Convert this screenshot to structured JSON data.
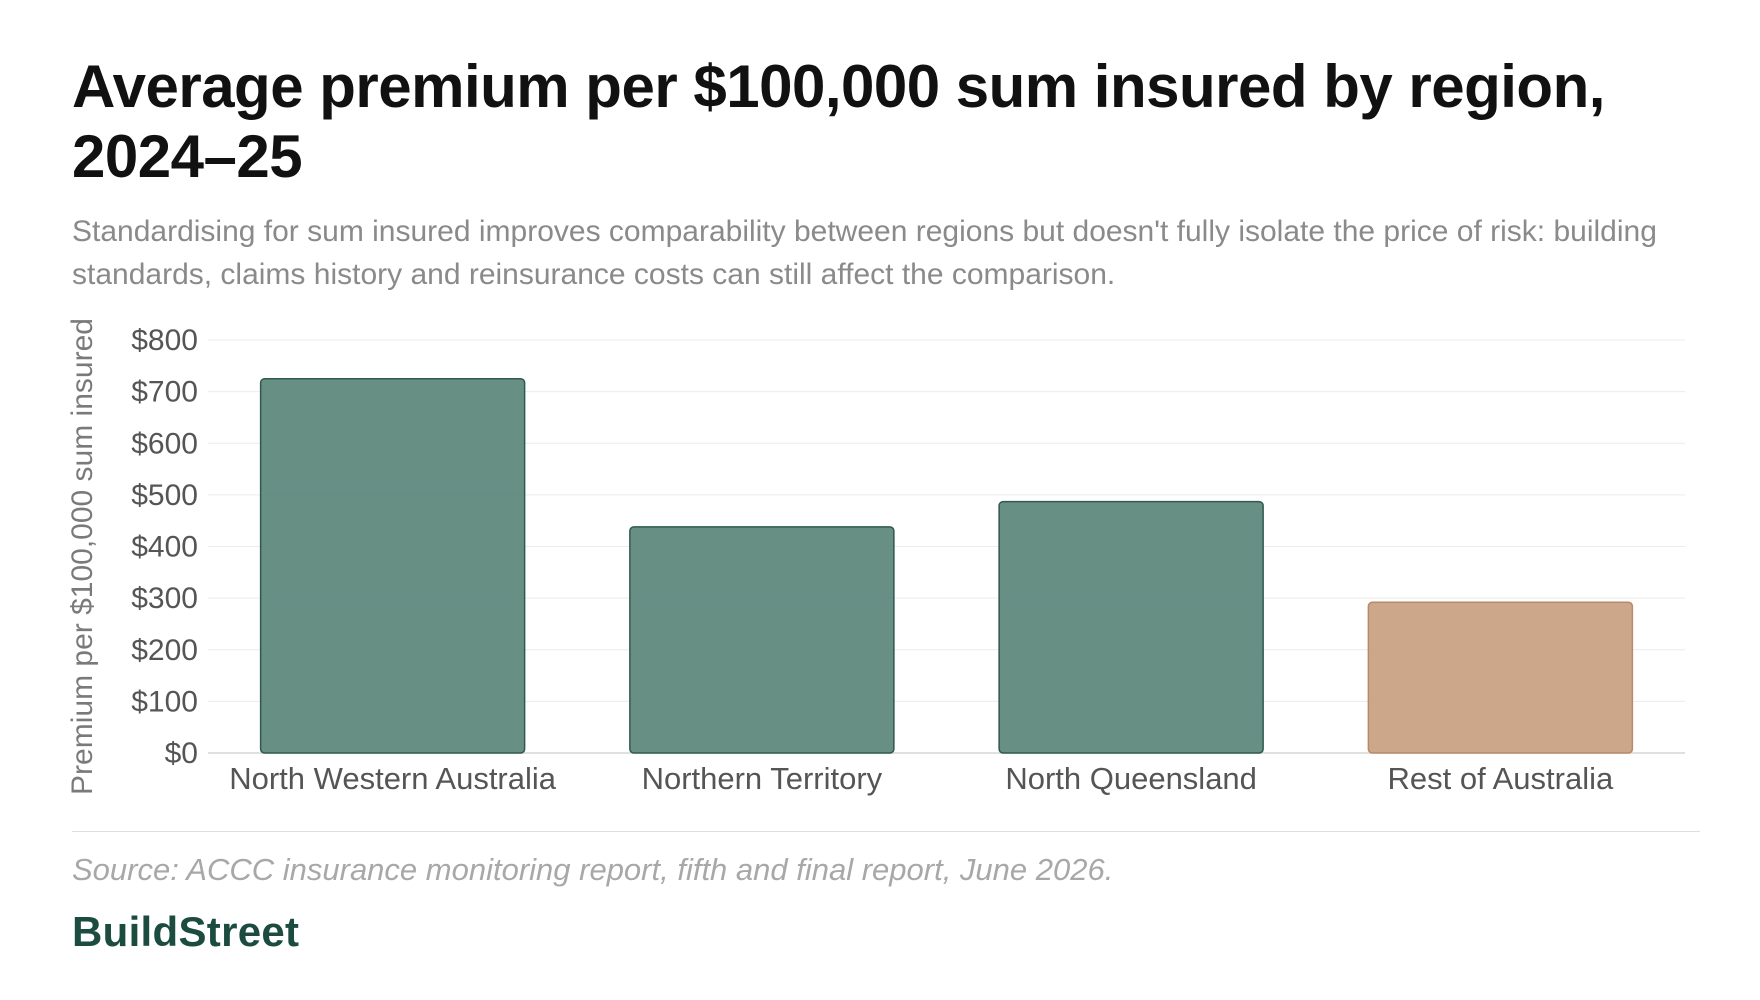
{
  "header": {
    "title": "Average premium per $100,000 sum insured by region, 2024–25",
    "subtitle": "Standardising for sum insured improves comparability between regions but doesn't fully isolate the price of risk: building standards, claims history and reinsurance costs can still affect the comparison."
  },
  "chart_data": {
    "type": "bar",
    "title": "Average premium per $100,000 sum insured by region, 2024–25",
    "xlabel": "",
    "ylabel": "Premium per $100,000 sum insured",
    "ylim": [
      0,
      800
    ],
    "yticks": [
      0,
      100,
      200,
      300,
      400,
      500,
      600,
      700,
      800
    ],
    "tick_prefix": "$",
    "grid": true,
    "categories": [
      "North Western Australia",
      "Northern Territory",
      "North Queensland",
      "Rest of Australia"
    ],
    "values": [
      725,
      438,
      487,
      292
    ],
    "colors": [
      "#5a8579",
      "#5a8579",
      "#5a8579",
      "#c9a07f"
    ],
    "border_colors": [
      "#2f5a4f",
      "#2f5a4f",
      "#2f5a4f",
      "#b8896a"
    ]
  },
  "footer": {
    "source": "Source: ACCC insurance monitoring report, fifth and final report, June 2026.",
    "brand": "BuildStreet"
  }
}
